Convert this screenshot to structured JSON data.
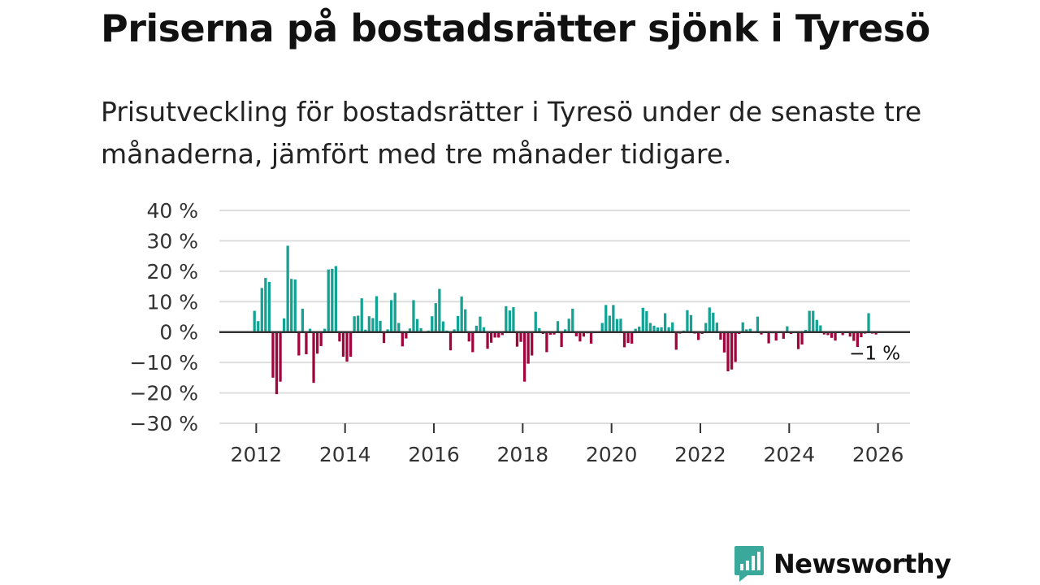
{
  "colors": {
    "positive": "#12a394",
    "negative": "#a0063c",
    "grid": "#dddddd",
    "zero_line": "#333333",
    "brand": "#3aa99c"
  },
  "brand": {
    "name": "Newsworthy",
    "icon": "bar-chart-speech-icon"
  },
  "chart_data": {
    "type": "bar",
    "title": "Priserna på bostadsrätter sjönk i Tyresö",
    "subtitle": "Prisutveckling för bostadsrätter i Tyresö under de senaste tre månaderna, jämfört med tre månader tidigare.",
    "xlabel": "",
    "ylabel": "",
    "ylim": [
      -30,
      40
    ],
    "xlim": [
      2011.17,
      2026.72
    ],
    "y_ticks": [
      40,
      30,
      20,
      10,
      0,
      -10,
      -20,
      -30
    ],
    "y_tick_labels": [
      "40 %",
      "30 %",
      "20 %",
      "10 %",
      "0 %",
      "−10 %",
      "−20 %",
      "−30 %"
    ],
    "x_ticks": [
      2012,
      2014,
      2016,
      2018,
      2020,
      2022,
      2024,
      2026
    ],
    "x_tick_labels": [
      "2012",
      "2014",
      "2016",
      "2018",
      "2020",
      "2022",
      "2024",
      "2026"
    ],
    "end_label": "−1 %",
    "series_start": 2011.96,
    "series_step": 0.0833,
    "values": [
      7,
      3.6,
      14.5,
      17.8,
      16.5,
      -15,
      -20.4,
      -16.3,
      4.5,
      28.4,
      17.5,
      17.3,
      -7.7,
      7.7,
      -7.3,
      1.1,
      -16.7,
      -7.1,
      -4.6,
      1.1,
      20.6,
      20.8,
      21.7,
      -3.1,
      -8.1,
      -9.7,
      -8.1,
      5.2,
      5.4,
      11.1,
      0.8,
      5.2,
      4.6,
      11.8,
      3.7,
      -3.6,
      0.9,
      10.5,
      12.9,
      3,
      -4.7,
      -2.1,
      1.2,
      10.5,
      4.3,
      1.3,
      0.3,
      0.5,
      5.2,
      9.5,
      14.2,
      3.5,
      0.5,
      -6,
      0.9,
      5.3,
      11.7,
      7.5,
      -3.1,
      -6.6,
      2.1,
      5.1,
      1.6,
      -5.5,
      -3.5,
      -1.8,
      -1.8,
      -1,
      8.5,
      7.1,
      8.2,
      -4.8,
      -3.2,
      -16.3,
      -10.4,
      -7.7,
      6.7,
      1.3,
      -0.6,
      -6.6,
      -0.9,
      -0.8,
      3.6,
      -4.9,
      0.9,
      4.4,
      7.7,
      -1.4,
      -3.1,
      -1.5,
      -0.4,
      -3.8,
      0.2,
      0.3,
      3,
      8.9,
      5.4,
      8.9,
      4.3,
      4.4,
      -5,
      -3.6,
      -3.8,
      1.1,
      1.8,
      8,
      6.9,
      3,
      2.1,
      1.5,
      1.6,
      6.2,
      1.6,
      3.2,
      -5.8,
      -0.5,
      0.5,
      7.2,
      5.6,
      -0.5,
      -2.6,
      -0.6,
      3,
      8.1,
      6.4,
      3.1,
      -2.5,
      -6.7,
      -12.9,
      -12.3,
      -9.8,
      -0.6,
      3.2,
      0.9,
      1.1,
      -0.3,
      5.1,
      -0.8,
      0.3,
      -3.7,
      -0.4,
      -2.8,
      -0.3,
      -2.2,
      1.9,
      -0.6,
      -0.3,
      -5.6,
      -4.1,
      0.7,
      7,
      7,
      4,
      2.2,
      -0.8,
      -1,
      -1.9,
      -2.8,
      -0.3,
      -1,
      -0.3,
      -1.5,
      -2.9,
      -4.9,
      -1.7,
      -0.5,
      6.2,
      -0.5,
      -0.8
    ]
  }
}
